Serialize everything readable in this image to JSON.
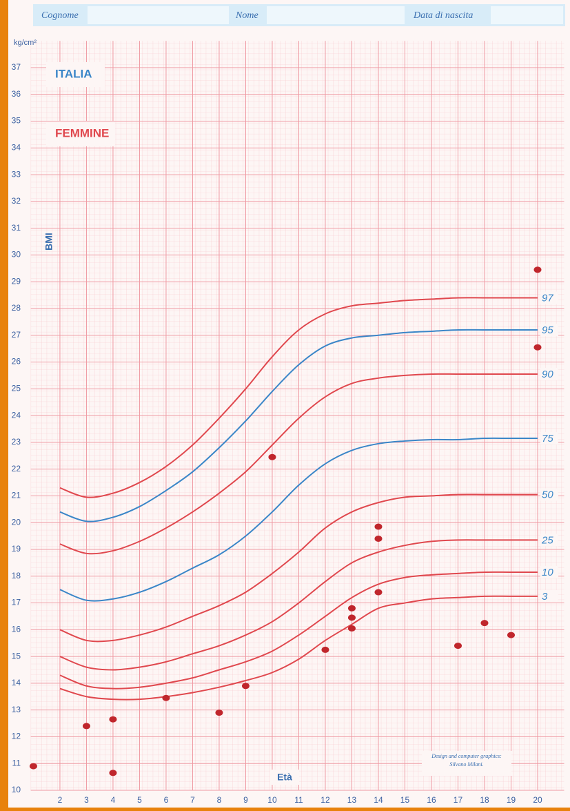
{
  "form_labels": {
    "surname": "Cognome",
    "name": "Nome",
    "birth_date": "Data di nascita"
  },
  "chart_data": {
    "type": "line",
    "country": "ITALIA",
    "sex": "FEMMINE",
    "y_label": "BMI",
    "y_unit": "kg/cm²",
    "x_label": "Età",
    "credit": "Design and computer graphics: Silvano Milani.",
    "xlim": [
      0.9,
      21
    ],
    "ylim": [
      10,
      38
    ],
    "xticks": [
      2,
      3,
      4,
      5,
      6,
      7,
      8,
      9,
      10,
      11,
      12,
      13,
      14,
      15,
      16,
      17,
      18,
      19,
      20
    ],
    "yticks": [
      10,
      11,
      12,
      13,
      14,
      15,
      16,
      17,
      18,
      19,
      20,
      21,
      22,
      23,
      24,
      25,
      26,
      27,
      28,
      29,
      30,
      31,
      32,
      33,
      34,
      35,
      36,
      37
    ],
    "grid": true,
    "x": [
      2,
      3,
      4,
      5,
      6,
      7,
      8,
      9,
      10,
      11,
      12,
      13,
      14,
      15,
      16,
      17,
      18,
      19,
      20
    ],
    "series": [
      {
        "name": "97",
        "color": "#e0484e",
        "values": [
          21.3,
          20.95,
          21.1,
          21.5,
          22.1,
          22.9,
          23.9,
          25.0,
          26.2,
          27.2,
          27.8,
          28.1,
          28.2,
          28.3,
          28.35,
          28.4,
          28.4,
          28.4,
          28.4
        ]
      },
      {
        "name": "95",
        "color": "#3a86c8",
        "values": [
          20.4,
          20.05,
          20.2,
          20.6,
          21.2,
          21.9,
          22.8,
          23.8,
          24.9,
          25.9,
          26.6,
          26.9,
          27.0,
          27.1,
          27.15,
          27.2,
          27.2,
          27.2,
          27.2
        ]
      },
      {
        "name": "90",
        "color": "#e0484e",
        "values": [
          19.2,
          18.85,
          18.95,
          19.3,
          19.8,
          20.4,
          21.1,
          21.9,
          22.9,
          23.9,
          24.7,
          25.2,
          25.4,
          25.5,
          25.55,
          25.55,
          25.55,
          25.55,
          25.55
        ]
      },
      {
        "name": "75",
        "color": "#3a86c8",
        "values": [
          17.5,
          17.1,
          17.15,
          17.4,
          17.8,
          18.3,
          18.8,
          19.5,
          20.4,
          21.4,
          22.2,
          22.7,
          22.95,
          23.05,
          23.1,
          23.1,
          23.15,
          23.15,
          23.15
        ]
      },
      {
        "name": "50",
        "color": "#e0484e",
        "values": [
          16.0,
          15.6,
          15.6,
          15.8,
          16.1,
          16.5,
          16.9,
          17.4,
          18.1,
          18.9,
          19.8,
          20.4,
          20.75,
          20.95,
          21.0,
          21.05,
          21.05,
          21.05,
          21.05
        ]
      },
      {
        "name": "25",
        "color": "#e0484e",
        "values": [
          15.0,
          14.6,
          14.5,
          14.6,
          14.8,
          15.1,
          15.4,
          15.8,
          16.3,
          17.0,
          17.8,
          18.5,
          18.9,
          19.15,
          19.3,
          19.35,
          19.35,
          19.35,
          19.35
        ]
      },
      {
        "name": "10",
        "color": "#e0484e",
        "values": [
          14.3,
          13.9,
          13.8,
          13.85,
          14.0,
          14.2,
          14.5,
          14.8,
          15.2,
          15.8,
          16.5,
          17.2,
          17.7,
          17.95,
          18.05,
          18.1,
          18.15,
          18.15,
          18.15
        ]
      },
      {
        "name": "3",
        "color": "#e0484e",
        "values": [
          13.8,
          13.5,
          13.4,
          13.4,
          13.5,
          13.65,
          13.85,
          14.1,
          14.4,
          14.9,
          15.6,
          16.2,
          16.8,
          17.0,
          17.15,
          17.2,
          17.25,
          17.25,
          17.25
        ]
      }
    ],
    "points": {
      "color": "#c0262c",
      "x": [
        1,
        3,
        4,
        4,
        6,
        8,
        9,
        10,
        12,
        13,
        13,
        13,
        14,
        14,
        14,
        17,
        18,
        19,
        20,
        20
      ],
      "y": [
        10.9,
        12.4,
        12.65,
        10.65,
        13.45,
        12.9,
        13.9,
        22.45,
        15.25,
        16.8,
        16.45,
        16.05,
        19.85,
        19.4,
        17.4,
        15.4,
        16.25,
        15.8,
        29.45,
        26.55
      ]
    }
  }
}
